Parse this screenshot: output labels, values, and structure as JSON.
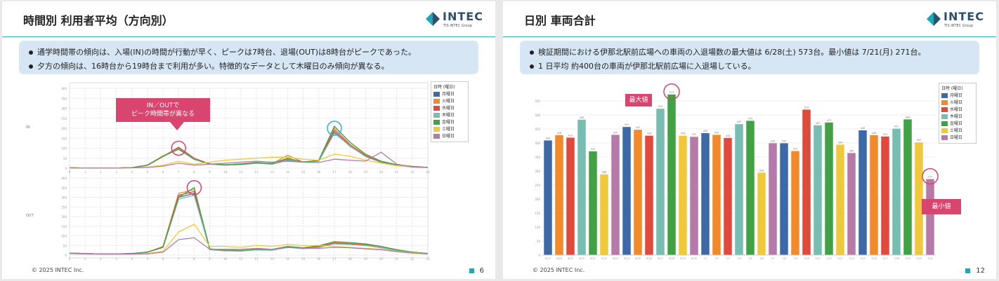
{
  "slides": [
    {
      "title": "時間別 利用者平均（方向別）",
      "bullets": [
        "通学時間帯の傾向は、入場(IN)の時間が行動が早く、ピークは7時台、退場(OUT)は8時台がピークであった。",
        "夕方の傾向は、16時台から19時台まで利用が多い。特徴的なデータとして木曜日のみ傾向が異なる。"
      ],
      "callout": [
        "IN／OUTで",
        "ピーク時間帯が異なる"
      ],
      "footer": "© 2025 INTEC Inc.",
      "page": "6"
    },
    {
      "title": "日別 車両合計",
      "bullets": [
        "検証期間における伊那北駅前広場への車両の入退場数の最大値は 6/28(土) 573台。最小値は 7/21(月) 271台。",
        "1 日平均 約400台の車両が伊那北駅前広場に入退場している。"
      ],
      "callout_max": "最大値",
      "callout_min": "最小値",
      "footer": "© 2025 INTEC Inc.",
      "page": "12"
    }
  ],
  "logo": {
    "text": "INTEC",
    "sub": "TIS INTEC Group"
  },
  "legend": {
    "title": "日時 (曜日)",
    "items": [
      "月曜日",
      "火曜日",
      "水曜日",
      "木曜日",
      "金曜日",
      "土曜日",
      "日曜日"
    ],
    "colors": [
      "#3d6aa6",
      "#f28a2b",
      "#e04a3c",
      "#77bdb2",
      "#41a145",
      "#f0c93a",
      "#b57aa8"
    ]
  },
  "chart_data": [
    {
      "type": "line",
      "panels": [
        "IN",
        "OUT"
      ],
      "x": [
        0,
        1,
        2,
        3,
        4,
        5,
        6,
        7,
        8,
        9,
        10,
        11,
        12,
        13,
        14,
        15,
        16,
        17,
        18,
        19,
        20,
        21,
        22,
        23
      ],
      "ylim": [
        0,
        400
      ],
      "yticks": [
        0,
        50,
        100,
        150,
        200,
        250,
        300,
        350,
        400
      ],
      "series": [
        {
          "name": "月曜日",
          "in": [
            2,
            1,
            1,
            1,
            3,
            15,
            60,
            95,
            45,
            20,
            15,
            18,
            25,
            20,
            40,
            30,
            35,
            180,
            110,
            60,
            30,
            15,
            8,
            4
          ],
          "out": [
            10,
            8,
            6,
            6,
            8,
            15,
            40,
            300,
            320,
            30,
            25,
            22,
            28,
            25,
            40,
            35,
            40,
            60,
            55,
            50,
            40,
            25,
            15,
            8
          ]
        },
        {
          "name": "火曜日",
          "in": [
            2,
            1,
            1,
            1,
            3,
            16,
            62,
            100,
            48,
            22,
            14,
            20,
            30,
            22,
            65,
            30,
            38,
            200,
            120,
            65,
            32,
            16,
            9,
            4
          ],
          "out": [
            10,
            8,
            6,
            6,
            8,
            14,
            45,
            320,
            340,
            30,
            24,
            20,
            30,
            28,
            45,
            35,
            45,
            65,
            60,
            55,
            40,
            25,
            15,
            8
          ]
        },
        {
          "name": "水曜日",
          "in": [
            2,
            1,
            1,
            1,
            3,
            14,
            58,
            105,
            50,
            21,
            16,
            22,
            28,
            20,
            45,
            32,
            36,
            190,
            115,
            62,
            30,
            14,
            8,
            4
          ],
          "out": [
            10,
            8,
            6,
            6,
            8,
            16,
            42,
            310,
            330,
            28,
            22,
            22,
            28,
            26,
            40,
            34,
            42,
            62,
            58,
            52,
            38,
            24,
            14,
            8
          ]
        },
        {
          "name": "木曜日",
          "in": [
            2,
            1,
            1,
            1,
            3,
            15,
            60,
            98,
            46,
            20,
            15,
            19,
            26,
            21,
            42,
            31,
            35,
            175,
            112,
            58,
            28,
            14,
            8,
            4
          ],
          "out": [
            10,
            8,
            6,
            6,
            8,
            15,
            40,
            290,
            310,
            29,
            23,
            21,
            27,
            25,
            40,
            33,
            40,
            58,
            55,
            50,
            38,
            24,
            14,
            8
          ]
        },
        {
          "name": "金曜日",
          "in": [
            2,
            1,
            1,
            1,
            3,
            15,
            60,
            96,
            44,
            22,
            18,
            20,
            28,
            24,
            50,
            30,
            40,
            210,
            130,
            70,
            35,
            18,
            9,
            4
          ],
          "out": [
            10,
            8,
            6,
            6,
            8,
            15,
            40,
            300,
            350,
            32,
            26,
            24,
            30,
            30,
            45,
            38,
            48,
            70,
            65,
            58,
            45,
            28,
            16,
            8
          ]
        },
        {
          "name": "土曜日",
          "in": [
            2,
            1,
            1,
            1,
            2,
            5,
            15,
            35,
            20,
            30,
            40,
            45,
            50,
            55,
            55,
            45,
            40,
            70,
            60,
            40,
            25,
            12,
            6,
            3
          ],
          "out": [
            8,
            6,
            5,
            5,
            5,
            8,
            20,
            120,
            160,
            45,
            45,
            40,
            50,
            45,
            55,
            50,
            50,
            45,
            40,
            35,
            30,
            20,
            12,
            6
          ]
        },
        {
          "name": "日曜日",
          "in": [
            2,
            1,
            1,
            1,
            2,
            4,
            10,
            25,
            15,
            20,
            25,
            30,
            35,
            30,
            35,
            30,
            28,
            45,
            40,
            35,
            80,
            20,
            6,
            3
          ],
          "out": [
            8,
            6,
            5,
            5,
            5,
            6,
            15,
            80,
            90,
            30,
            30,
            30,
            35,
            30,
            40,
            35,
            35,
            40,
            38,
            32,
            28,
            18,
            10,
            6
          ]
        }
      ]
    },
    {
      "type": "bar",
      "ylim": [
        0,
        600
      ],
      "yticks": [
        0,
        50,
        100,
        150,
        200,
        250,
        300,
        350,
        400,
        450,
        500,
        550
      ],
      "dates": [
        "6/17",
        "6/18",
        "6/19",
        "6/20",
        "6/21",
        "6/22",
        "6/23",
        "6/24",
        "6/25",
        "6/26",
        "6/27",
        "6/28",
        "6/29",
        "6/30",
        "7/1",
        "7/2",
        "7/3",
        "7/4",
        "7/5",
        "7/6",
        "7/7",
        "7/8",
        "7/9",
        "7/10",
        "7/11",
        "7/12",
        "7/13",
        "7/14",
        "7/15",
        "7/16",
        "7/17",
        "7/18",
        "7/19",
        "7/20",
        "7/21"
      ],
      "weekday": [
        1,
        2,
        3,
        4,
        5,
        6,
        0,
        1,
        2,
        3,
        4,
        5,
        6,
        0,
        1,
        2,
        3,
        4,
        5,
        6,
        0,
        1,
        2,
        3,
        4,
        5,
        6,
        0,
        1,
        2,
        3,
        4,
        5,
        6,
        0
      ],
      "values": [
        409,
        428,
        419,
        483,
        370,
        288,
        429,
        457,
        447,
        426,
        522,
        573,
        426,
        422,
        435,
        429,
        418,
        467,
        479,
        294,
        399,
        399,
        371,
        519,
        463,
        473,
        394,
        364,
        445,
        428,
        423,
        451,
        484,
        402,
        271
      ],
      "max_label": "573",
      "min_label": "271"
    }
  ]
}
